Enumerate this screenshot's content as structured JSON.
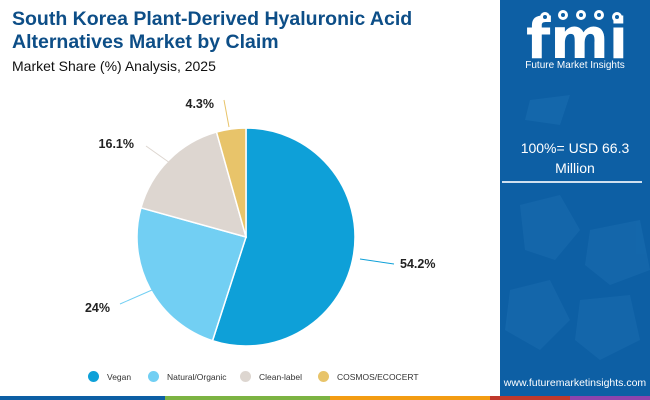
{
  "header": {
    "title": "South Korea Plant-Derived Hyaluronic Acid Alternatives Market by Claim",
    "subtitle": "Market Share (%) Analysis, 2025"
  },
  "sidebar": {
    "brand_logo_text": "fmi",
    "brand_name": "Future Market Insights",
    "stat_text": "100%= USD 66.3 Million",
    "url": "www.futuremarketinsights.com"
  },
  "chart_data": {
    "type": "pie",
    "title": "",
    "slices": [
      {
        "label": "Vegan",
        "value": 54.2,
        "display": "54.2%",
        "color": "#0ea0d8"
      },
      {
        "label": "Natural/Organic",
        "value": 24,
        "display": "24%",
        "color": "#72cff3"
      },
      {
        "label": "Clean-label",
        "value": 16.1,
        "display": "16.1%",
        "color": "#ddd6d0"
      },
      {
        "label": "COSMOS/ECOCERT",
        "value": 4.3,
        "display": "4.3%",
        "color": "#e8c46a"
      }
    ],
    "start_angle": "12 o'clock",
    "direction": "clockwise",
    "legend_position": "bottom"
  },
  "colors": {
    "title": "#0d4e87",
    "sidebar_bg": "#0d5fa4",
    "bottom_bar": [
      "#0d5fa4",
      "#7cb342",
      "#f39c12",
      "#c0392b",
      "#8e44ad"
    ]
  }
}
